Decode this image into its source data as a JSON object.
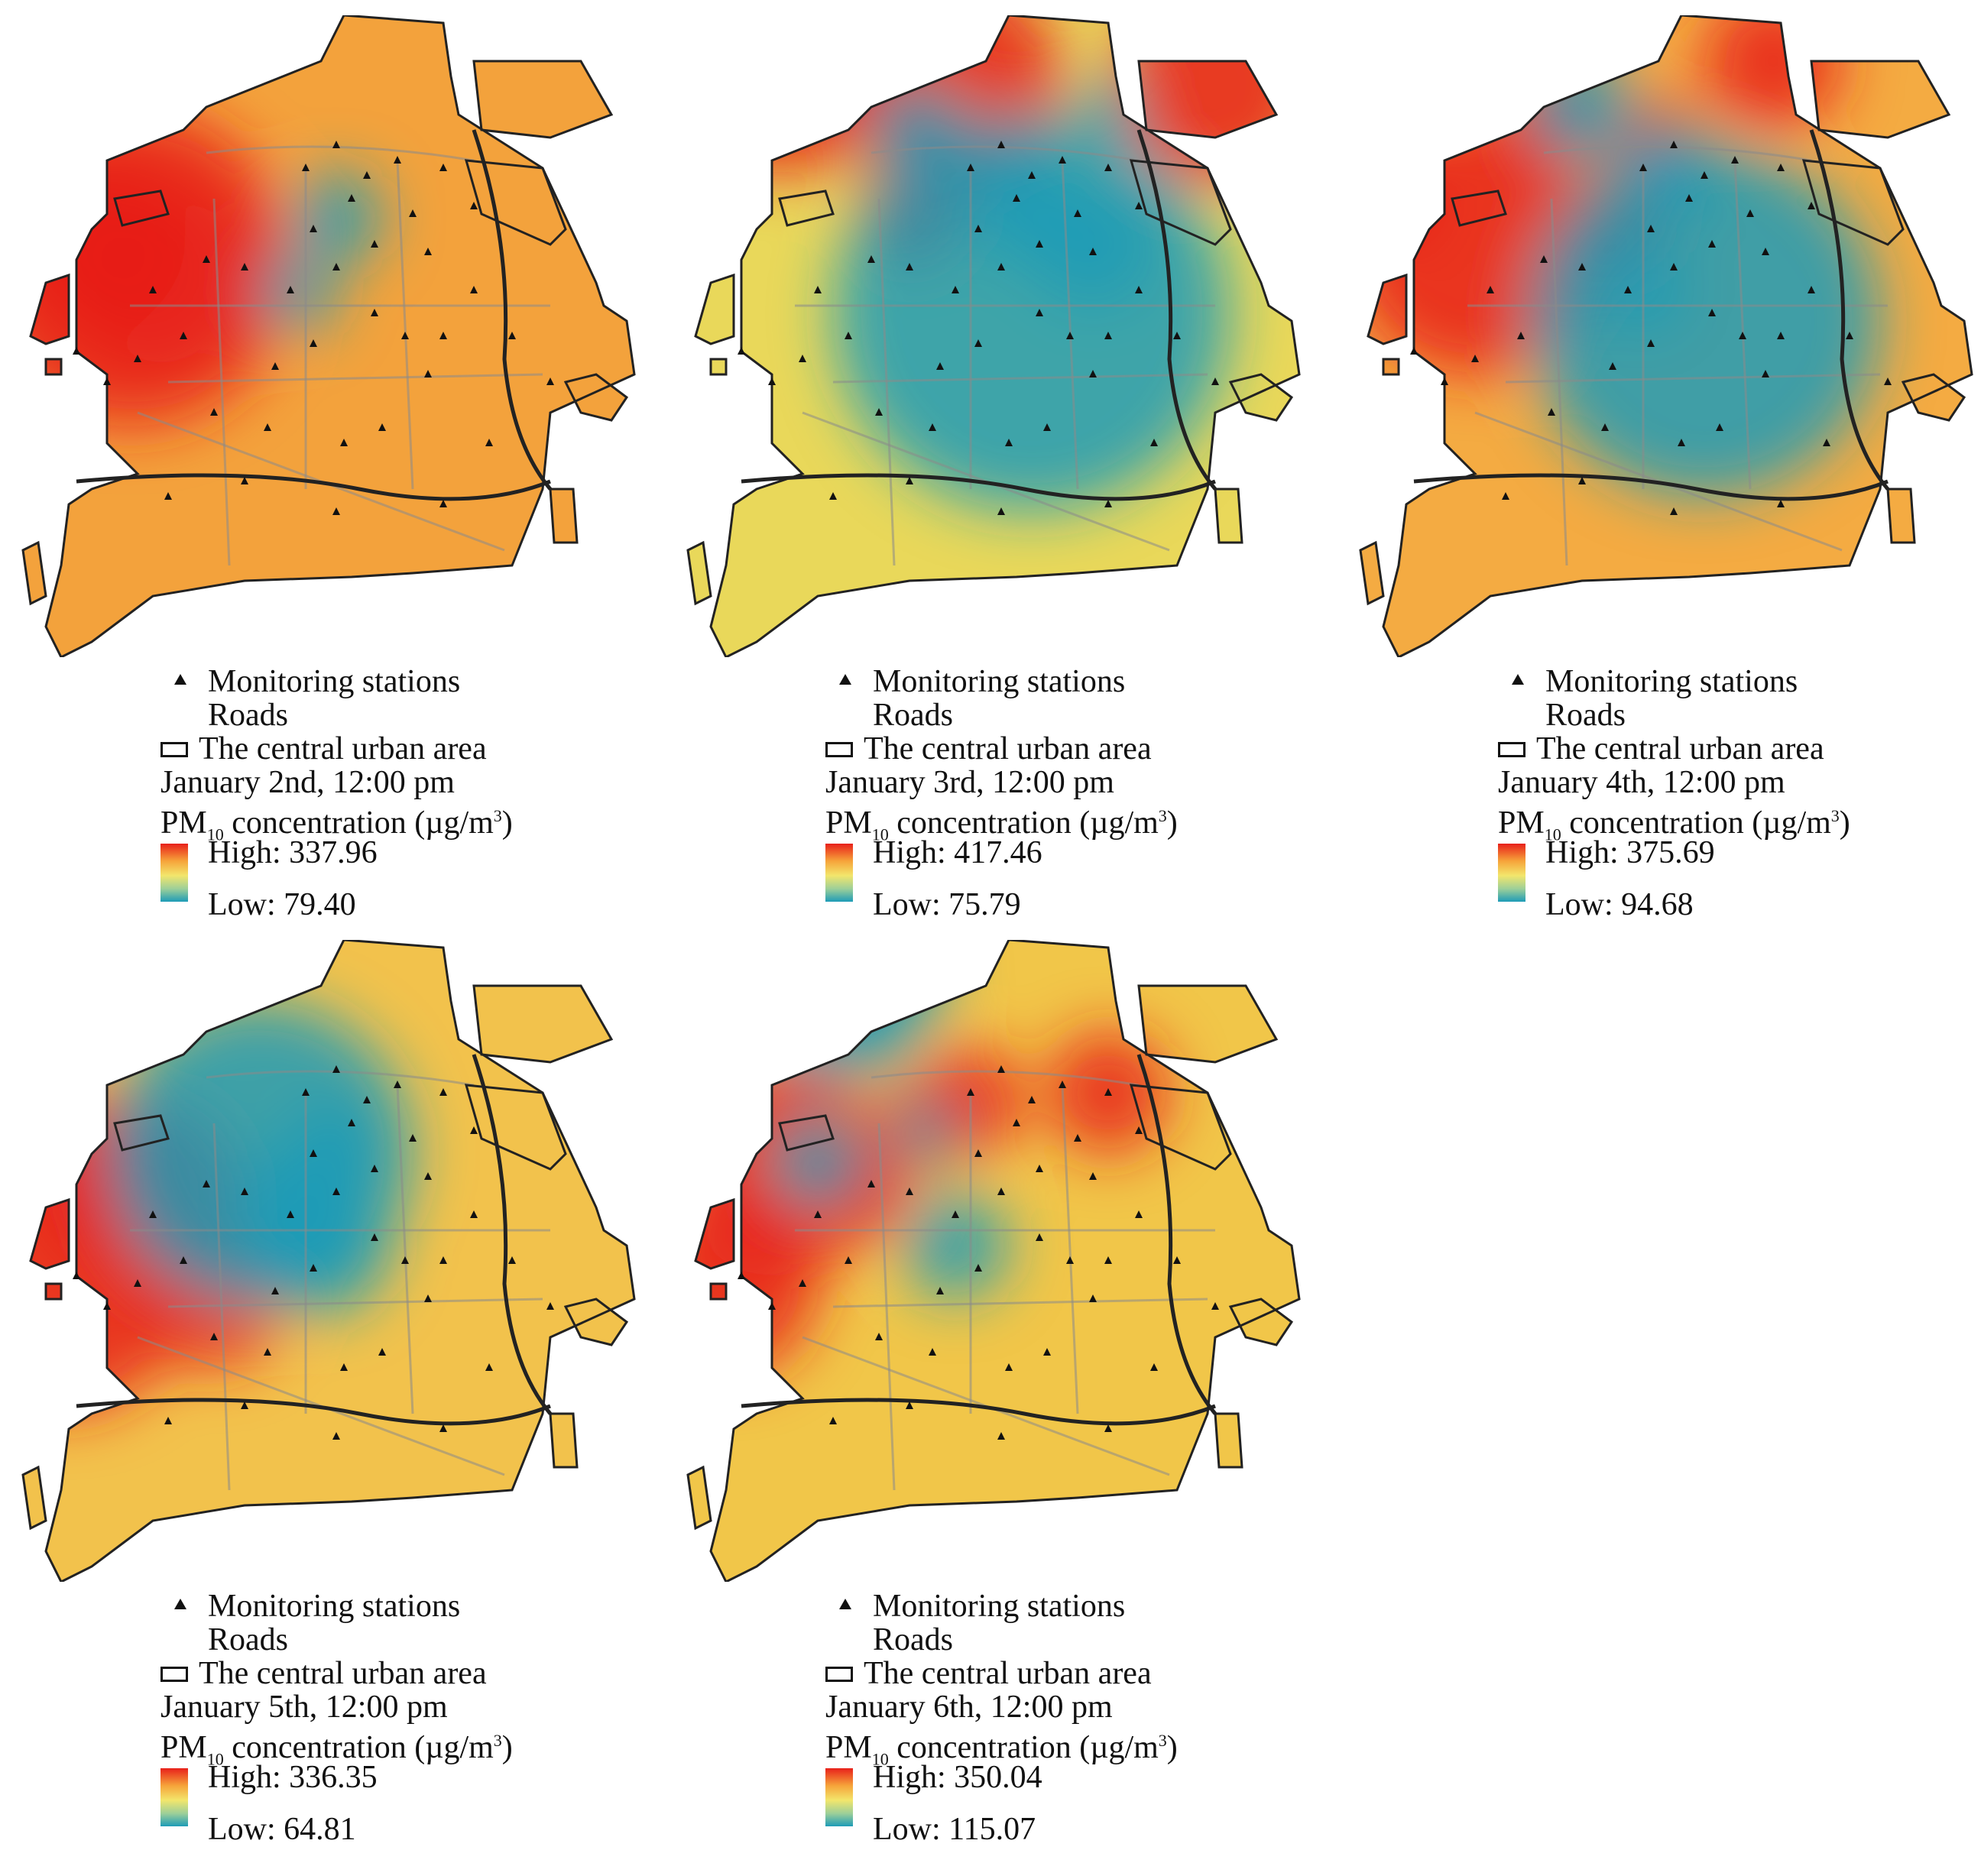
{
  "legend_labels": {
    "stations": "Monitoring stations",
    "roads": "Roads",
    "area": "The central urban area",
    "conc_prefix": "PM",
    "conc_sub": "10",
    "conc_suffix": " concentration (µg/m",
    "conc_sup": "3",
    "conc_close": ")",
    "high_prefix": "High: ",
    "low_prefix": "Low: "
  },
  "maps": [
    {
      "date": "January 2nd, 12:00 pm",
      "high": "337.96",
      "low": "79.40"
    },
    {
      "date": "January 3rd, 12:00 pm",
      "high": "417.46",
      "low": "75.79"
    },
    {
      "date": "January 4th, 12:00 pm",
      "high": "375.69",
      "low": "94.68"
    },
    {
      "date": "January 5th, 12:00 pm",
      "high": "336.35",
      "low": "64.81"
    },
    {
      "date": "January 6th, 12:00 pm",
      "high": "350.04",
      "low": "115.07"
    }
  ],
  "colors": {
    "high": "#e8201a",
    "mid": "#f3e66c",
    "low": "#1d9bb7"
  }
}
